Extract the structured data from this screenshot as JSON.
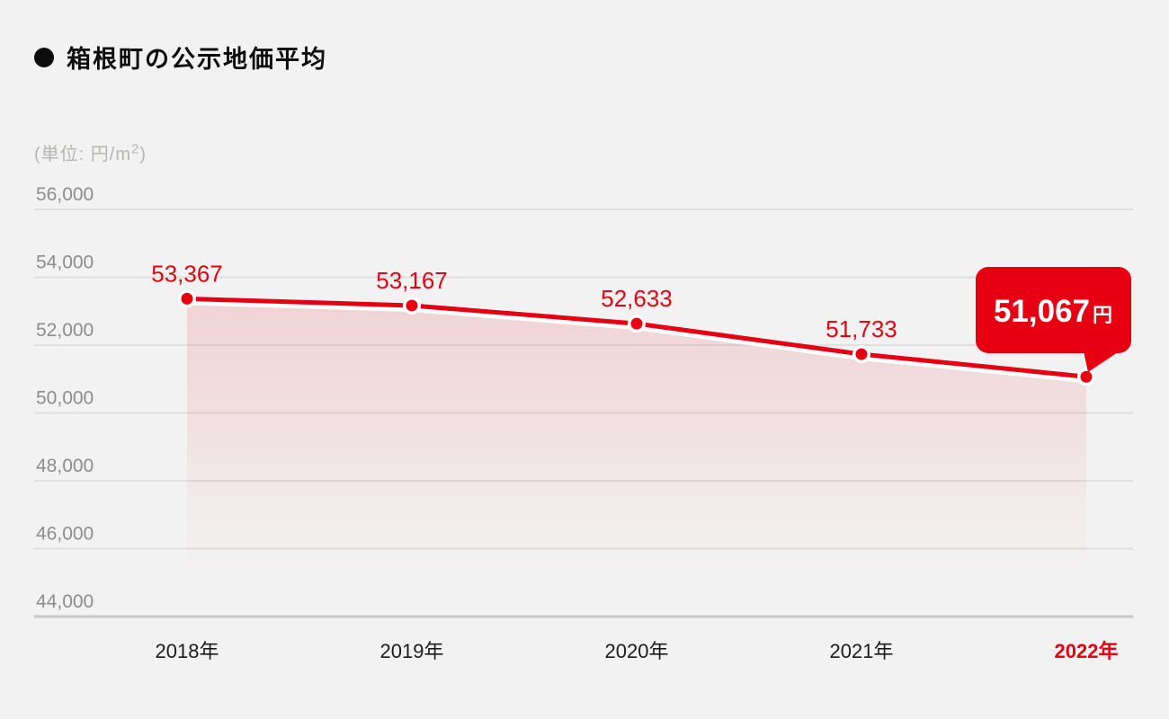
{
  "page": {
    "background_color": "#f2f2f2",
    "accent_color": "#e60012"
  },
  "header": {
    "title": "箱根町の公示地価平均"
  },
  "unit_label": {
    "prefix": "(単位: 円/m",
    "superscript": "2",
    "suffix": ")"
  },
  "chart_data": {
    "type": "area",
    "title": "箱根町の公示地価平均",
    "ylabel": "円/m2",
    "xlabel": "",
    "categories": [
      "2018年",
      "2019年",
      "2020年",
      "2021年",
      "2022年"
    ],
    "values": [
      53367,
      53167,
      52633,
      51733,
      51067
    ],
    "labels_formatted": [
      "53,367",
      "53,167",
      "52,633",
      "51,733",
      "51,067"
    ],
    "highlight_index": 4,
    "callout": {
      "value": "51,067",
      "unit": "円"
    },
    "y_ticks": [
      {
        "value": 56000,
        "label": "56,000"
      },
      {
        "value": 54000,
        "label": "54,000"
      },
      {
        "value": 52000,
        "label": "52,000"
      },
      {
        "value": 50000,
        "label": "50,000"
      },
      {
        "value": 48000,
        "label": "48,000"
      },
      {
        "value": 46000,
        "label": "46,000"
      },
      {
        "value": 44000,
        "label": "44,000"
      }
    ],
    "ylim": [
      44000,
      56000
    ],
    "grid": true,
    "legend": "none",
    "line_color": "#e60012",
    "area_top_opacity": 0.13,
    "grid_color": "#e0dfdf",
    "axis_color": "#c8c7c6",
    "tick_label_color": "#8f8d8c",
    "x_label_color": "#1c1c1c",
    "value_label_color": "#e60012",
    "callout_text_color": "#ffffff"
  }
}
